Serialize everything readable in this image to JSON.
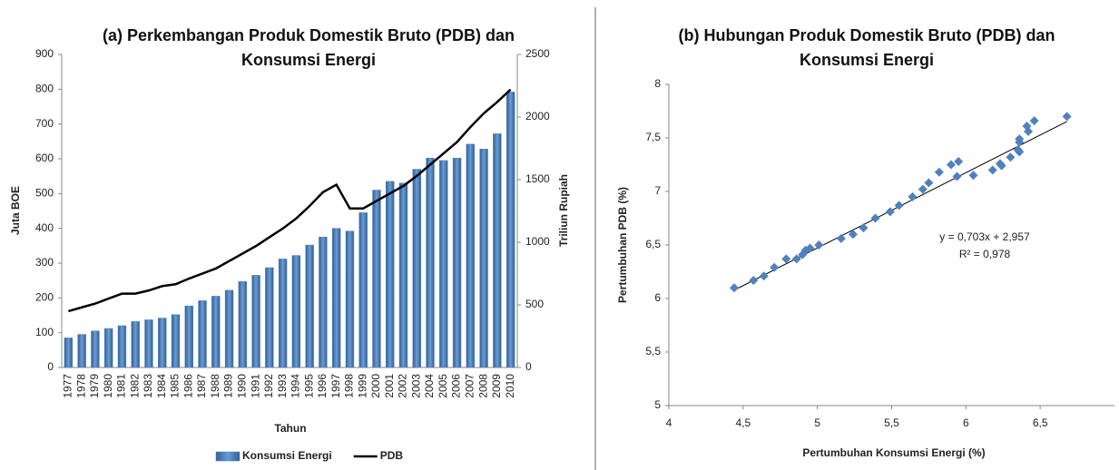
{
  "chart_data": [
    {
      "type": "bar",
      "title": "(a) Perkembangan Produk Domestik Bruto (PDB) dan Konsumsi Energi",
      "x_label": "Tahun",
      "y_label": "Juta BOE",
      "y2_label": "Triliun Rupiah",
      "categories": [
        "1977",
        "1978",
        "1979",
        "1980",
        "1981",
        "1982",
        "1983",
        "1984",
        "1985",
        "1986",
        "1987",
        "1988",
        "1989",
        "1990",
        "1991",
        "1992",
        "1993",
        "1994",
        "1995",
        "1996",
        "1997",
        "1998",
        "1999",
        "2000",
        "2001",
        "2002",
        "2003",
        "2004",
        "2005",
        "2006",
        "2007",
        "2008",
        "2009",
        "2010"
      ],
      "series": [
        {
          "name": "Konsumsi Energi",
          "type": "bar",
          "color": "#4f81bd",
          "values": [
            85,
            95,
            105,
            112,
            120,
            132,
            137,
            142,
            152,
            177,
            192,
            205,
            222,
            247,
            265,
            287,
            312,
            322,
            352,
            375,
            400,
            392,
            445,
            510,
            535,
            530,
            570,
            602,
            595,
            602,
            642,
            628,
            672,
            792
          ]
        },
        {
          "name": "PDB",
          "type": "line",
          "color": "#000000",
          "axis": "y2",
          "values": [
            450,
            480,
            510,
            550,
            590,
            590,
            615,
            650,
            665,
            710,
            750,
            790,
            850,
            910,
            970,
            1040,
            1110,
            1190,
            1290,
            1400,
            1460,
            1270,
            1270,
            1330,
            1390,
            1450,
            1530,
            1620,
            1710,
            1800,
            1920,
            2030,
            2120,
            2220
          ]
        }
      ],
      "ylim": [
        0,
        900
      ],
      "yticks": [
        0,
        100,
        200,
        300,
        400,
        500,
        600,
        700,
        800,
        900
      ],
      "y2lim": [
        0,
        2500
      ],
      "y2ticks": [
        0,
        500,
        1000,
        1500,
        2000,
        2500
      ],
      "legend": "bottom"
    },
    {
      "type": "scatter",
      "title": "(b) Hubungan Produk Domestik Bruto (PDB) dan Konsumsi Energi",
      "x_label": "Pertumbuhan Konsumsi Energi (%)",
      "y_label": "Pertumbuhan PDB (%)",
      "color": "#4f81bd",
      "x": [
        4.44,
        4.57,
        4.64,
        4.71,
        4.79,
        4.86,
        4.9,
        4.92,
        4.95,
        5.01,
        5.16,
        5.24,
        5.31,
        5.39,
        5.49,
        5.55,
        5.64,
        5.71,
        5.75,
        5.82,
        5.9,
        5.95,
        5.94,
        6.05,
        6.18,
        6.23,
        6.24,
        6.3,
        6.35,
        6.36,
        6.36,
        6.41,
        6.42,
        6.46,
        6.68,
        6.36
      ],
      "values": [
        6.1,
        6.17,
        6.21,
        6.29,
        6.37,
        6.37,
        6.41,
        6.45,
        6.47,
        6.5,
        6.56,
        6.6,
        6.66,
        6.75,
        6.81,
        6.87,
        6.95,
        7.02,
        7.08,
        7.18,
        7.25,
        7.28,
        7.14,
        7.15,
        7.2,
        7.26,
        7.24,
        7.32,
        7.39,
        7.46,
        7.37,
        7.61,
        7.56,
        7.66,
        7.7,
        7.49
      ],
      "trendline": {
        "slope": 0.703,
        "intercept": 2.957,
        "color": "#000000"
      },
      "annotations": [
        "y = 0,703x + 2,957",
        "R² = 0,978"
      ],
      "xlim": [
        4,
        7
      ],
      "xticks": [
        4,
        {
          "value": 4.5,
          "label": "4,5"
        },
        5,
        {
          "value": 5.5,
          "label": "5,5"
        },
        6,
        {
          "value": 6.5,
          "label": "6,5"
        }
      ],
      "ylim": [
        5,
        8
      ],
      "yticks": [
        5,
        {
          "value": 5.5,
          "label": "5,5"
        },
        6,
        {
          "value": 6.5,
          "label": "6,5"
        },
        7,
        {
          "value": 7.5,
          "label": "7,5"
        },
        8
      ]
    }
  ]
}
